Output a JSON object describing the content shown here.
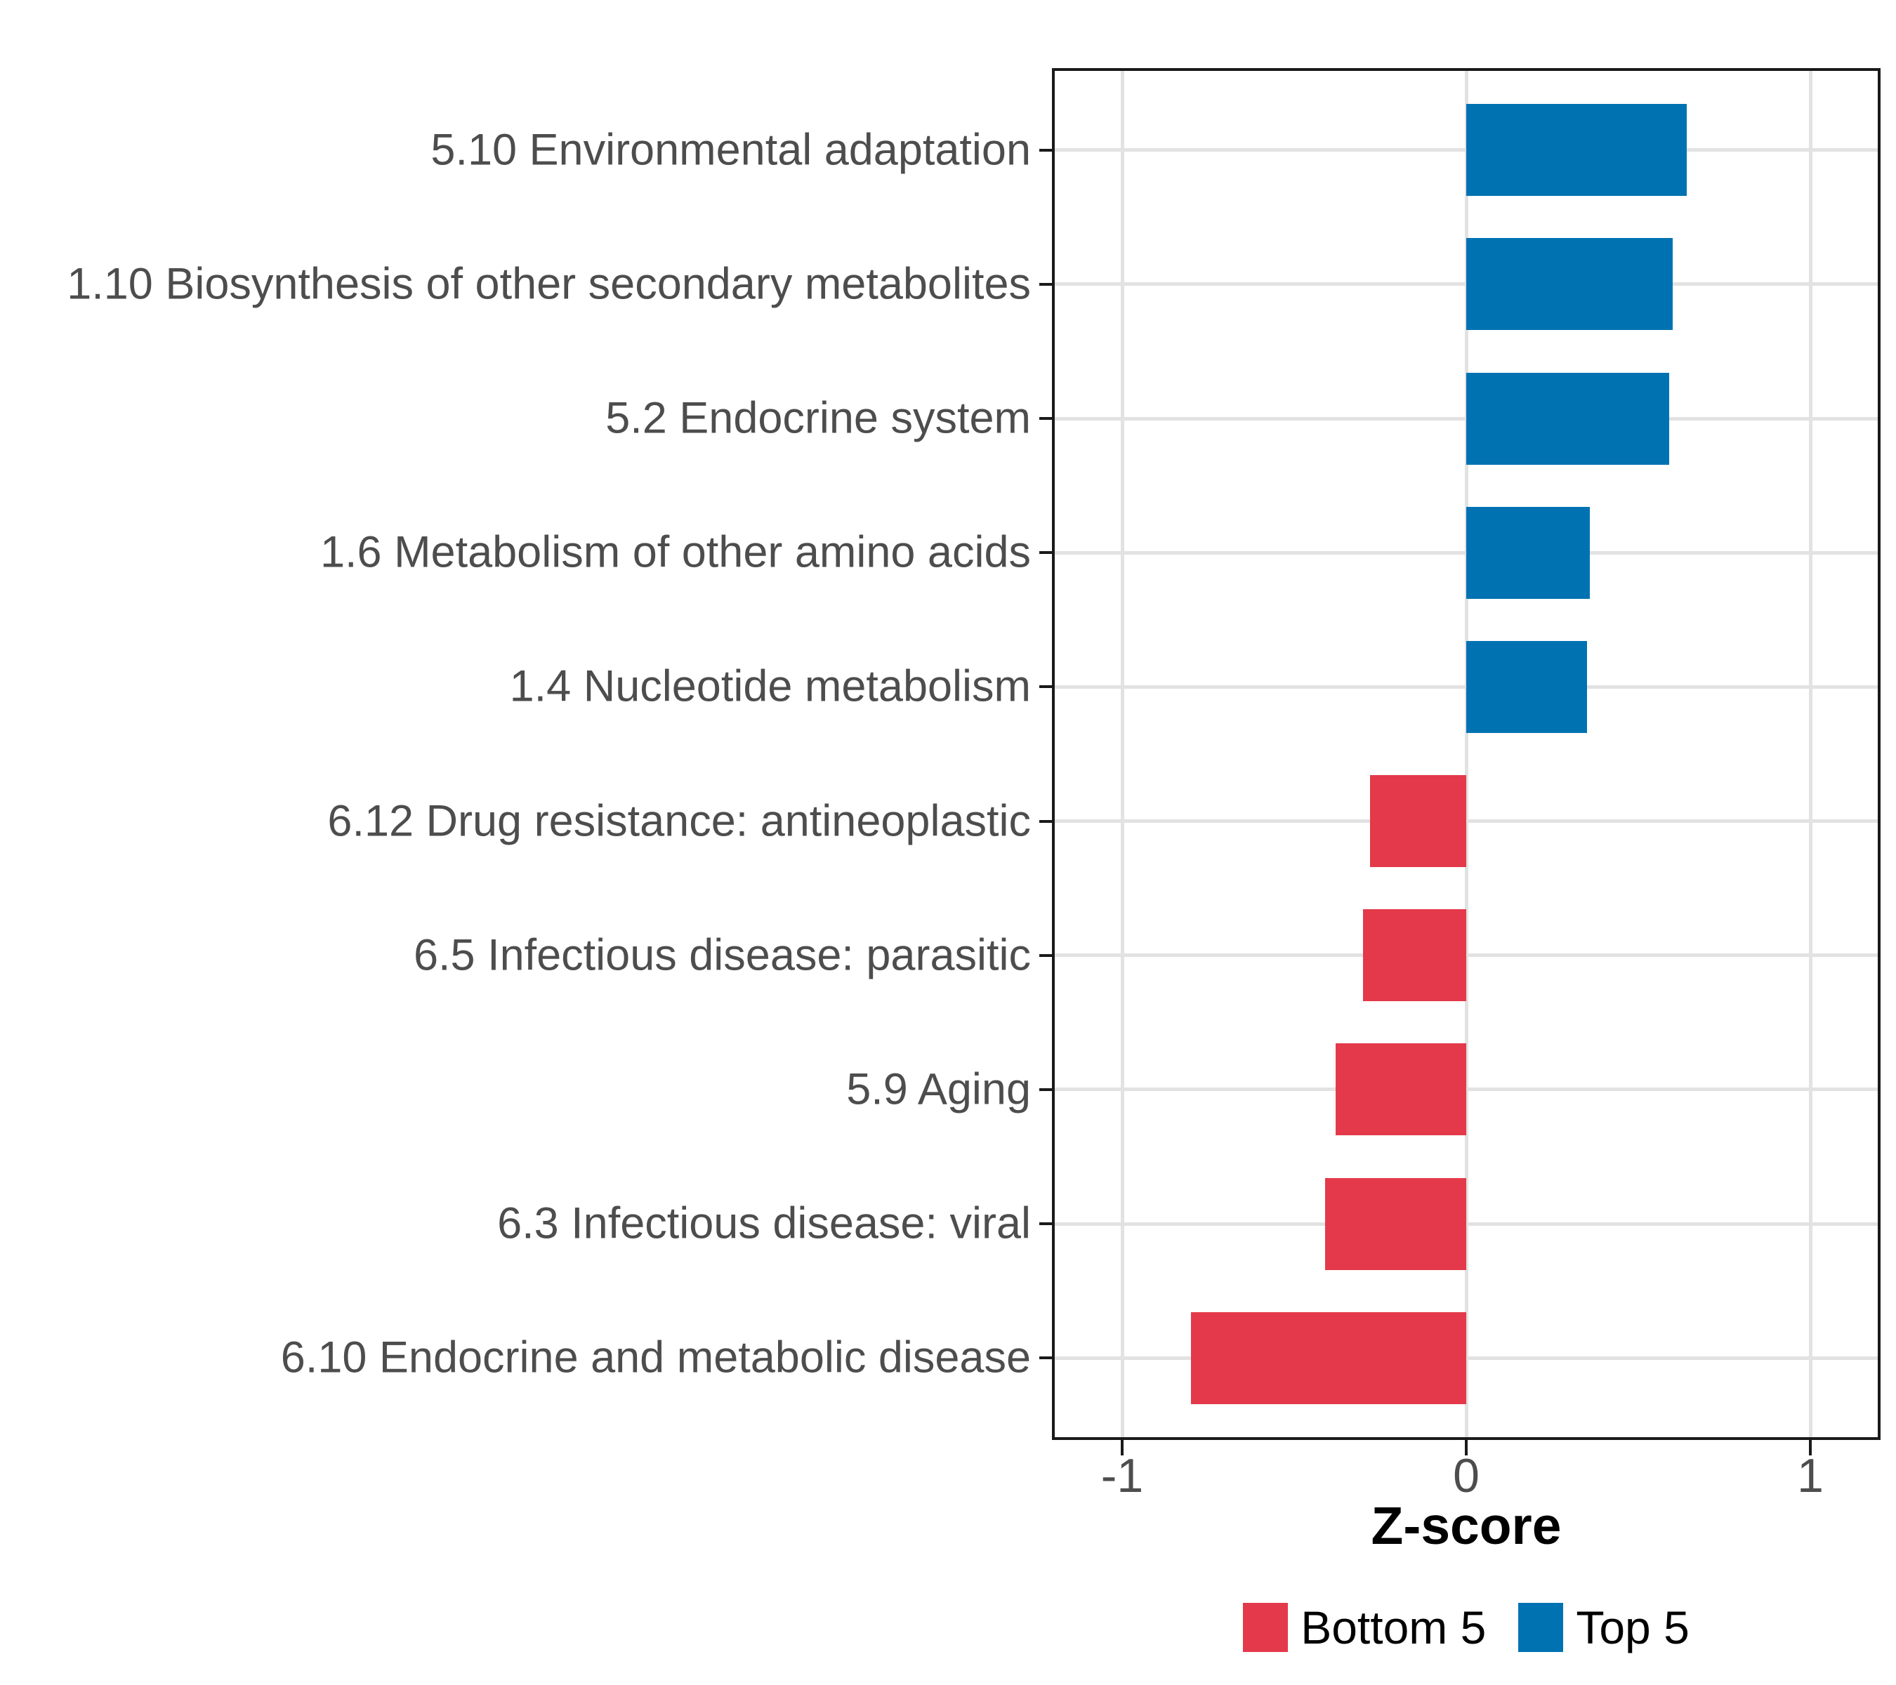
{
  "chart_data": {
    "type": "bar",
    "orientation": "horizontal",
    "title": "",
    "xlabel": "Z-score",
    "ylabel": "",
    "categories": [
      "5.10 Environmental adaptation",
      "1.10 Biosynthesis of other secondary metabolites",
      "5.2 Endocrine system",
      "1.6 Metabolism of other amino acids",
      "1.4 Nucleotide metabolism",
      "6.12 Drug resistance: antineoplastic",
      "6.5 Infectious disease: parasitic",
      "5.9 Aging",
      "6.3 Infectious disease: viral",
      "6.10 Endocrine and metabolic disease"
    ],
    "values": [
      0.64,
      0.6,
      0.59,
      0.36,
      0.35,
      -0.28,
      -0.3,
      -0.38,
      -0.41,
      -0.8
    ],
    "groups": [
      "Top 5",
      "Top 5",
      "Top 5",
      "Top 5",
      "Top 5",
      "Bottom 5",
      "Bottom 5",
      "Bottom 5",
      "Bottom 5",
      "Bottom 5"
    ],
    "colors": {
      "Bottom 5": "#E3394A",
      "Top 5": "#0072B2"
    },
    "xlim": [
      -1.2,
      1.2
    ],
    "x_ticks": [
      -1,
      0,
      1
    ],
    "x_tick_labels": [
      "-1",
      "0",
      "1"
    ],
    "grid": "major",
    "legend": {
      "position": "bottom",
      "entries": [
        {
          "label": "Bottom 5",
          "color": "#E3394A"
        },
        {
          "label": "Top 5",
          "color": "#0072B2"
        }
      ]
    }
  }
}
